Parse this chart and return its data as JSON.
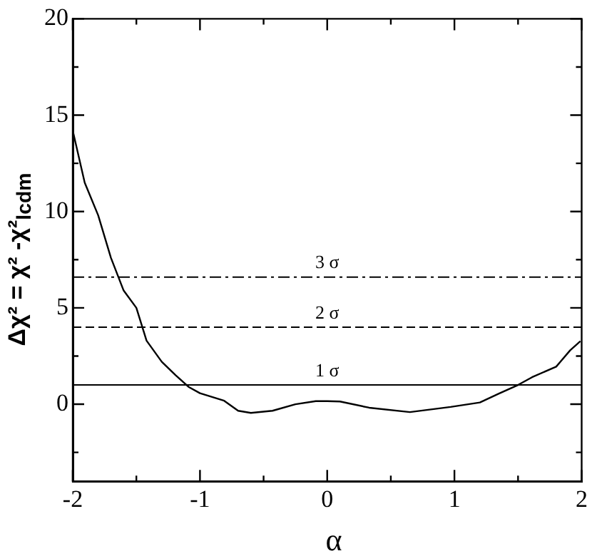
{
  "chart_data": {
    "type": "line",
    "xlabel": "α",
    "ylabel": "Δχ² = χ² -χ²$_{lcdm}$",
    "x": [
      -2,
      -1.906,
      -1.8,
      -1.7,
      -1.6,
      -1.5,
      -1.42,
      -1.3,
      -1.19,
      -1.09,
      -1,
      -0.81,
      -0.7,
      -0.6,
      -0.43,
      -0.25,
      -0.09,
      0,
      0.1,
      0.33,
      0.65,
      0.97,
      1.2,
      1.35,
      1.5,
      1.61,
      1.8,
      1.91,
      1.99
    ],
    "series": [
      {
        "color": "#000000",
        "values": [
          14.2,
          11.5,
          9.8,
          7.6,
          5.9,
          5.0,
          3.3,
          2.2,
          1.5,
          0.9,
          0.57,
          0.18,
          -0.34,
          -0.45,
          -0.34,
          0,
          0.16,
          0.16,
          0.14,
          -0.18,
          -0.41,
          -0.14,
          0.09,
          0.55,
          1.0,
          1.4,
          1.95,
          2.8,
          3.27
        ]
      }
    ],
    "xlim": [
      -2,
      2
    ],
    "xticks": [
      -2,
      {
        "value": -1.5,
        "label": null
      },
      -1,
      {
        "value": -0.5,
        "label": null
      },
      0,
      {
        "value": 0.5,
        "label": null
      },
      1,
      {
        "value": 1.5,
        "label": null
      },
      2
    ],
    "ylim": [
      -4,
      20
    ],
    "yticks": [
      {
        "value": -2.5,
        "label": null
      },
      0,
      {
        "value": 2.5,
        "label": null
      },
      5,
      {
        "value": 7.5,
        "label": null
      },
      10,
      {
        "value": 12.5,
        "label": null
      },
      15,
      {
        "value": 17.5,
        "label": null
      },
      20
    ],
    "ref_lines": [
      {
        "axis": "y",
        "value": 1,
        "label": "1 σ",
        "color": "#000000",
        "line_style": "solid"
      },
      {
        "axis": "y",
        "value": 4,
        "label": "2 σ",
        "color": "#000000",
        "line_style": "dashed"
      },
      {
        "axis": "y",
        "value": 6.6,
        "label": "3 σ",
        "color": "#000000",
        "line_style": "dashdot"
      }
    ],
    "grid": false,
    "legend": false,
    "marker": "none",
    "line_style": "solid"
  }
}
